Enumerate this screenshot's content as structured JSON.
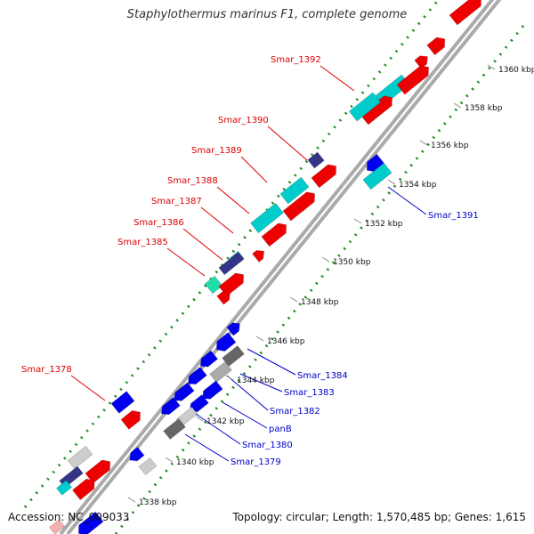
{
  "title": "Staphylothermus marinus F1, complete genome",
  "footer": {
    "accession": "Accession: NC_009033",
    "topology": "Topology: circular; Length: 1,570,485 bp; Genes: 1,615"
  },
  "colors": {
    "forward_label": "#dd0000",
    "reverse_label": "#0000cc",
    "cds_red": "#ee0000",
    "cds_blue": "#0000ee",
    "cds_cyan": "#00cccc",
    "cds_teal": "#22ddaa",
    "cds_navy": "#333388",
    "cds_gray": "#999999",
    "cds_dark_gray": "#666666",
    "backbone": "#aaaaaa",
    "tick_green": "#228822",
    "tick_label": "#111111"
  },
  "ticks": [
    "1338 kbp",
    "1340 kbp",
    "1342 kbp",
    "1344 kbp",
    "1346 kbp",
    "1348 kbp",
    "1350 kbp",
    "1352 kbp",
    "1354 kbp",
    "1356 kbp",
    "1358 kbp",
    "1360 kbp"
  ],
  "forward_labels": [
    "Smar_1378",
    "Smar_1385",
    "Smar_1386",
    "Smar_1387",
    "Smar_1388",
    "Smar_1389",
    "Smar_1390",
    "Smar_1392"
  ],
  "reverse_labels": [
    "Smar_1379",
    "Smar_1380",
    "panB",
    "Smar_1382",
    "Smar_1383",
    "Smar_1384",
    "Smar_1391"
  ]
}
